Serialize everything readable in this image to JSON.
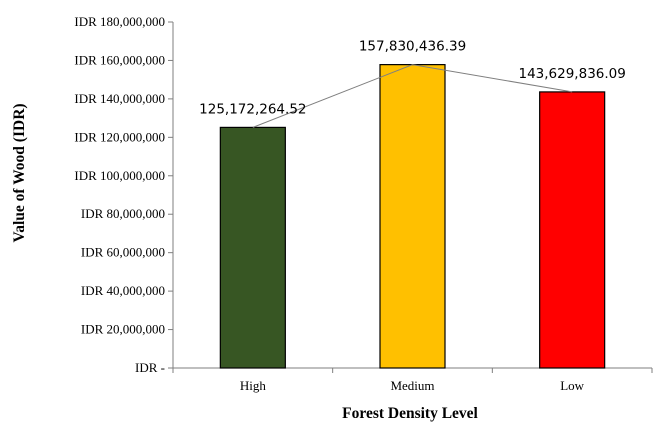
{
  "chart_data": {
    "type": "bar",
    "categories": [
      "High",
      "Medium",
      "Low"
    ],
    "values": [
      125172264.52,
      157830436.39,
      143629836.09
    ],
    "data_labels": [
      "125,172,264.52",
      "157,830,436.39",
      "143,629,836.09"
    ],
    "bar_colors": [
      "#375623",
      "#FFC000",
      "#FF0000"
    ],
    "overlay_line": true,
    "xlabel": "Forest Density Level",
    "ylabel": "Value of Wood (IDR)",
    "ylim": [
      0,
      180000000
    ],
    "y_ticks": [
      {
        "value": 0,
        "label": "IDR -"
      },
      {
        "value": 20000000,
        "label": "IDR 20,000,000"
      },
      {
        "value": 40000000,
        "label": "IDR 40,000,000"
      },
      {
        "value": 60000000,
        "label": "IDR 60,000,000"
      },
      {
        "value": 80000000,
        "label": "IDR 80,000,000"
      },
      {
        "value": 100000000,
        "label": "IDR 100,000,000"
      },
      {
        "value": 120000000,
        "label": "IDR 120,000,000"
      },
      {
        "value": 140000000,
        "label": "IDR 140,000,000"
      },
      {
        "value": 160000000,
        "label": "IDR 160,000,000"
      },
      {
        "value": 180000000,
        "label": "IDR 180,000,000"
      }
    ],
    "grid": false,
    "legend": "none"
  }
}
